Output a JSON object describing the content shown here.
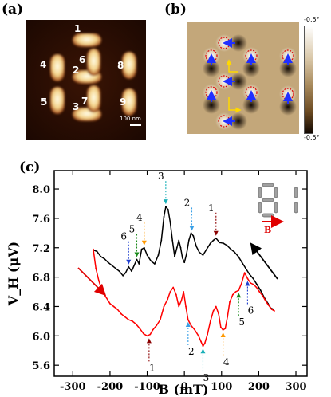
{
  "panels": {
    "a": {
      "label": "(a)",
      "element_numbers": [
        "1",
        "2",
        "3",
        "4",
        "5",
        "6",
        "7",
        "8",
        "9"
      ],
      "scale_bar": "100 nm"
    },
    "b": {
      "label": "(b)",
      "colorbar_max": "-0.5°",
      "colorbar_min": "-0.5°"
    },
    "c": {
      "label": "(c)",
      "field_label": "B",
      "chart_data": {
        "type": "line",
        "xlabel": "B (mT)",
        "ylabel": "V_H (μV)",
        "xlim": [
          -350,
          330
        ],
        "ylim": [
          5.45,
          8.25
        ],
        "x_ticks": [
          -300,
          -200,
          -100,
          0,
          100,
          200,
          300
        ],
        "y_ticks": [
          5.6,
          6.0,
          6.4,
          6.8,
          7.2,
          7.6,
          8.0
        ],
        "series": [
          {
            "color": "#000000",
            "direction": "down-sweep",
            "points": [
              [
                240,
                6.36
              ],
              [
                232,
                6.38
              ],
              [
                225,
                6.44
              ],
              [
                215,
                6.52
              ],
              [
                205,
                6.62
              ],
              [
                195,
                6.7
              ],
              [
                185,
                6.78
              ],
              [
                175,
                6.84
              ],
              [
                165,
                6.92
              ],
              [
                155,
                7.0
              ],
              [
                145,
                7.08
              ],
              [
                135,
                7.14
              ],
              [
                125,
                7.18
              ],
              [
                115,
                7.23
              ],
              [
                105,
                7.26
              ],
              [
                95,
                7.27
              ],
              [
                85,
                7.33
              ],
              [
                78,
                7.3
              ],
              [
                70,
                7.26
              ],
              [
                60,
                7.18
              ],
              [
                50,
                7.1
              ],
              [
                40,
                7.14
              ],
              [
                32,
                7.22
              ],
              [
                24,
                7.36
              ],
              [
                18,
                7.4
              ],
              [
                12,
                7.3
              ],
              [
                6,
                7.12
              ],
              [
                0,
                7.0
              ],
              [
                -5,
                7.06
              ],
              [
                -10,
                7.2
              ],
              [
                -15,
                7.3
              ],
              [
                -20,
                7.2
              ],
              [
                -26,
                7.08
              ],
              [
                -32,
                7.3
              ],
              [
                -38,
                7.55
              ],
              [
                -44,
                7.72
              ],
              [
                -50,
                7.76
              ],
              [
                -55,
                7.62
              ],
              [
                -62,
                7.3
              ],
              [
                -70,
                7.1
              ],
              [
                -80,
                6.98
              ],
              [
                -90,
                7.02
              ],
              [
                -100,
                7.1
              ],
              [
                -108,
                7.2
              ],
              [
                -115,
                7.18
              ],
              [
                -122,
                6.98
              ],
              [
                -128,
                7.04
              ],
              [
                -135,
                6.96
              ],
              [
                -142,
                6.88
              ],
              [
                -150,
                6.94
              ],
              [
                -158,
                6.86
              ],
              [
                -165,
                6.82
              ],
              [
                -175,
                6.88
              ],
              [
                -185,
                6.92
              ],
              [
                -195,
                6.96
              ],
              [
                -205,
                7.0
              ],
              [
                -215,
                7.05
              ],
              [
                -225,
                7.08
              ],
              [
                -235,
                7.15
              ],
              [
                -245,
                7.17
              ]
            ]
          },
          {
            "color": "#ff0000",
            "direction": "up-sweep",
            "points": [
              [
                -245,
                7.18
              ],
              [
                -238,
                6.92
              ],
              [
                -230,
                6.75
              ],
              [
                -220,
                6.6
              ],
              [
                -210,
                6.52
              ],
              [
                -200,
                6.44
              ],
              [
                -190,
                6.4
              ],
              [
                -180,
                6.36
              ],
              [
                -170,
                6.3
              ],
              [
                -160,
                6.26
              ],
              [
                -150,
                6.22
              ],
              [
                -140,
                6.2
              ],
              [
                -130,
                6.16
              ],
              [
                -120,
                6.1
              ],
              [
                -110,
                6.03
              ],
              [
                -100,
                6.0
              ],
              [
                -92,
                6.02
              ],
              [
                -85,
                6.08
              ],
              [
                -75,
                6.14
              ],
              [
                -65,
                6.22
              ],
              [
                -55,
                6.4
              ],
              [
                -45,
                6.5
              ],
              [
                -38,
                6.6
              ],
              [
                -30,
                6.66
              ],
              [
                -22,
                6.56
              ],
              [
                -15,
                6.4
              ],
              [
                -8,
                6.48
              ],
              [
                -2,
                6.6
              ],
              [
                4,
                6.4
              ],
              [
                10,
                6.22
              ],
              [
                18,
                6.14
              ],
              [
                28,
                6.08
              ],
              [
                38,
                6.0
              ],
              [
                45,
                5.92
              ],
              [
                50,
                5.86
              ],
              [
                55,
                5.9
              ],
              [
                62,
                6.02
              ],
              [
                70,
                6.2
              ],
              [
                78,
                6.34
              ],
              [
                85,
                6.4
              ],
              [
                92,
                6.3
              ],
              [
                98,
                6.12
              ],
              [
                104,
                6.08
              ],
              [
                110,
                6.1
              ],
              [
                116,
                6.26
              ],
              [
                122,
                6.46
              ],
              [
                130,
                6.56
              ],
              [
                138,
                6.6
              ],
              [
                146,
                6.62
              ],
              [
                154,
                6.72
              ],
              [
                162,
                6.86
              ],
              [
                170,
                6.78
              ],
              [
                178,
                6.72
              ],
              [
                186,
                6.7
              ],
              [
                194,
                6.66
              ],
              [
                202,
                6.6
              ],
              [
                210,
                6.55
              ],
              [
                218,
                6.48
              ],
              [
                226,
                6.42
              ],
              [
                235,
                6.36
              ],
              [
                242,
                6.34
              ]
            ]
          }
        ],
        "annotations_black": [
          {
            "text": "1",
            "x": 85,
            "y": 7.33,
            "color": "#8b0000"
          },
          {
            "text": "2",
            "x": 20,
            "y": 7.4,
            "color": "#3aa0e6"
          },
          {
            "text": "3",
            "x": -50,
            "y": 7.76,
            "color": "#19b0b8"
          },
          {
            "text": "4",
            "x": -108,
            "y": 7.2,
            "color": "#ff9800"
          },
          {
            "text": "5",
            "x": -128,
            "y": 7.04,
            "color": "#1a8a1a"
          },
          {
            "text": "6",
            "x": -150,
            "y": 6.94,
            "color": "#1f3fd0"
          }
        ],
        "annotations_red": [
          {
            "text": "1",
            "x": -95,
            "y": 6.0,
            "color": "#8b0000"
          },
          {
            "text": "2",
            "x": 10,
            "y": 6.22,
            "color": "#3aa0e6"
          },
          {
            "text": "3",
            "x": 50,
            "y": 5.86,
            "color": "#19b0b8"
          },
          {
            "text": "4",
            "x": 104,
            "y": 6.08,
            "color": "#ff9800"
          },
          {
            "text": "5",
            "x": 146,
            "y": 6.62,
            "color": "#1a8a1a"
          },
          {
            "text": "6",
            "x": 170,
            "y": 6.78,
            "color": "#1f3fd0"
          }
        ]
      }
    }
  }
}
